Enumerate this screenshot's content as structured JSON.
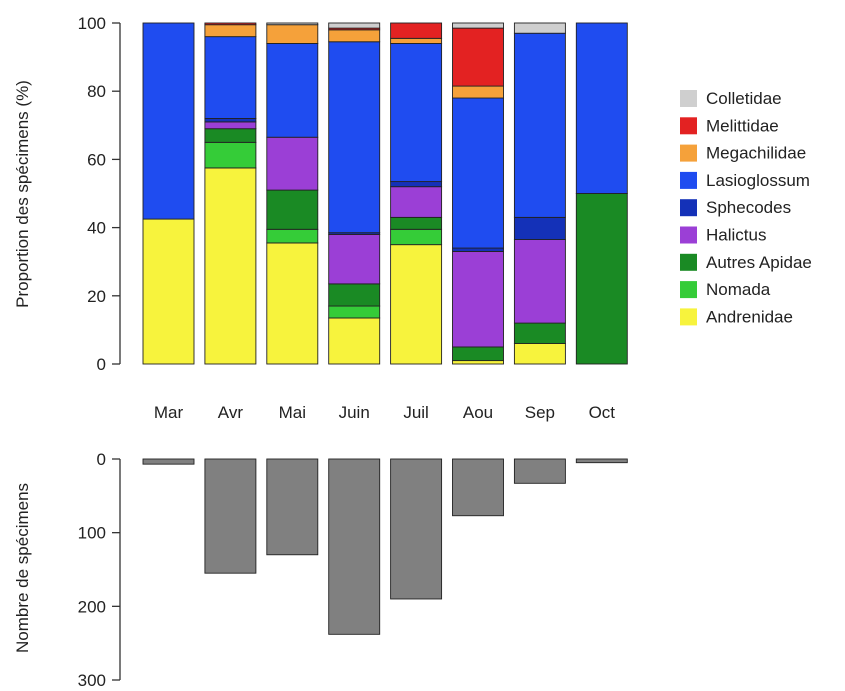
{
  "chart_data": [
    {
      "type": "bar",
      "stacked": true,
      "ylabel": "Proportion des spécimens (%)",
      "ylim": [
        0,
        100
      ],
      "yticks": [
        0,
        20,
        40,
        60,
        80,
        100
      ],
      "categories": [
        "Mar",
        "Avr",
        "Mai",
        "Juin",
        "Juil",
        "Aou",
        "Sep",
        "Oct"
      ],
      "legend_position": "right",
      "series": [
        {
          "name": "Andrenidae",
          "color": "#f7f33d",
          "values": [
            42.5,
            57.5,
            35.5,
            13.5,
            35,
            1,
            6,
            0
          ]
        },
        {
          "name": "Nomada",
          "color": "#35cc38",
          "values": [
            0,
            7.5,
            4,
            3.5,
            4.5,
            0,
            0,
            0
          ]
        },
        {
          "name": "Autres Apidae",
          "color": "#1a8a24",
          "values": [
            0,
            4,
            11.5,
            6.5,
            3.5,
            4,
            6,
            50
          ]
        },
        {
          "name": "Halictus",
          "color": "#9b3fd6",
          "values": [
            0,
            2,
            15.5,
            14.5,
            9,
            28,
            24.5,
            0
          ]
        },
        {
          "name": "Sphecodes",
          "color": "#1431b8",
          "values": [
            0,
            1,
            0,
            0.5,
            1.5,
            1,
            6.5,
            0
          ]
        },
        {
          "name": "Lasioglossum",
          "color": "#1f4cf0",
          "values": [
            57.5,
            24,
            27.5,
            56,
            40.5,
            44,
            54,
            50
          ]
        },
        {
          "name": "Megachilidae",
          "color": "#f5a13a",
          "values": [
            0,
            3.5,
            5.5,
            3.5,
            1.5,
            3.5,
            0,
            0
          ]
        },
        {
          "name": "Melittidae",
          "color": "#e32222",
          "values": [
            0,
            0.5,
            0,
            0.5,
            4.5,
            17,
            0,
            0
          ]
        },
        {
          "name": "Colletidae",
          "color": "#cfcfcf",
          "values": [
            0,
            0,
            0.5,
            1.5,
            0,
            1.5,
            3,
            0
          ]
        }
      ]
    },
    {
      "type": "bar",
      "orientation": "downward",
      "ylabel": "Nombre de spécimens",
      "ylim": [
        0,
        300
      ],
      "yticks": [
        0,
        100,
        200,
        300
      ],
      "categories": [
        "Mar",
        "Avr",
        "Mai",
        "Juin",
        "Juil",
        "Aou",
        "Sep",
        "Oct"
      ],
      "color": "#808080",
      "values": [
        7,
        155,
        130,
        238,
        190,
        77,
        33,
        5
      ]
    }
  ]
}
